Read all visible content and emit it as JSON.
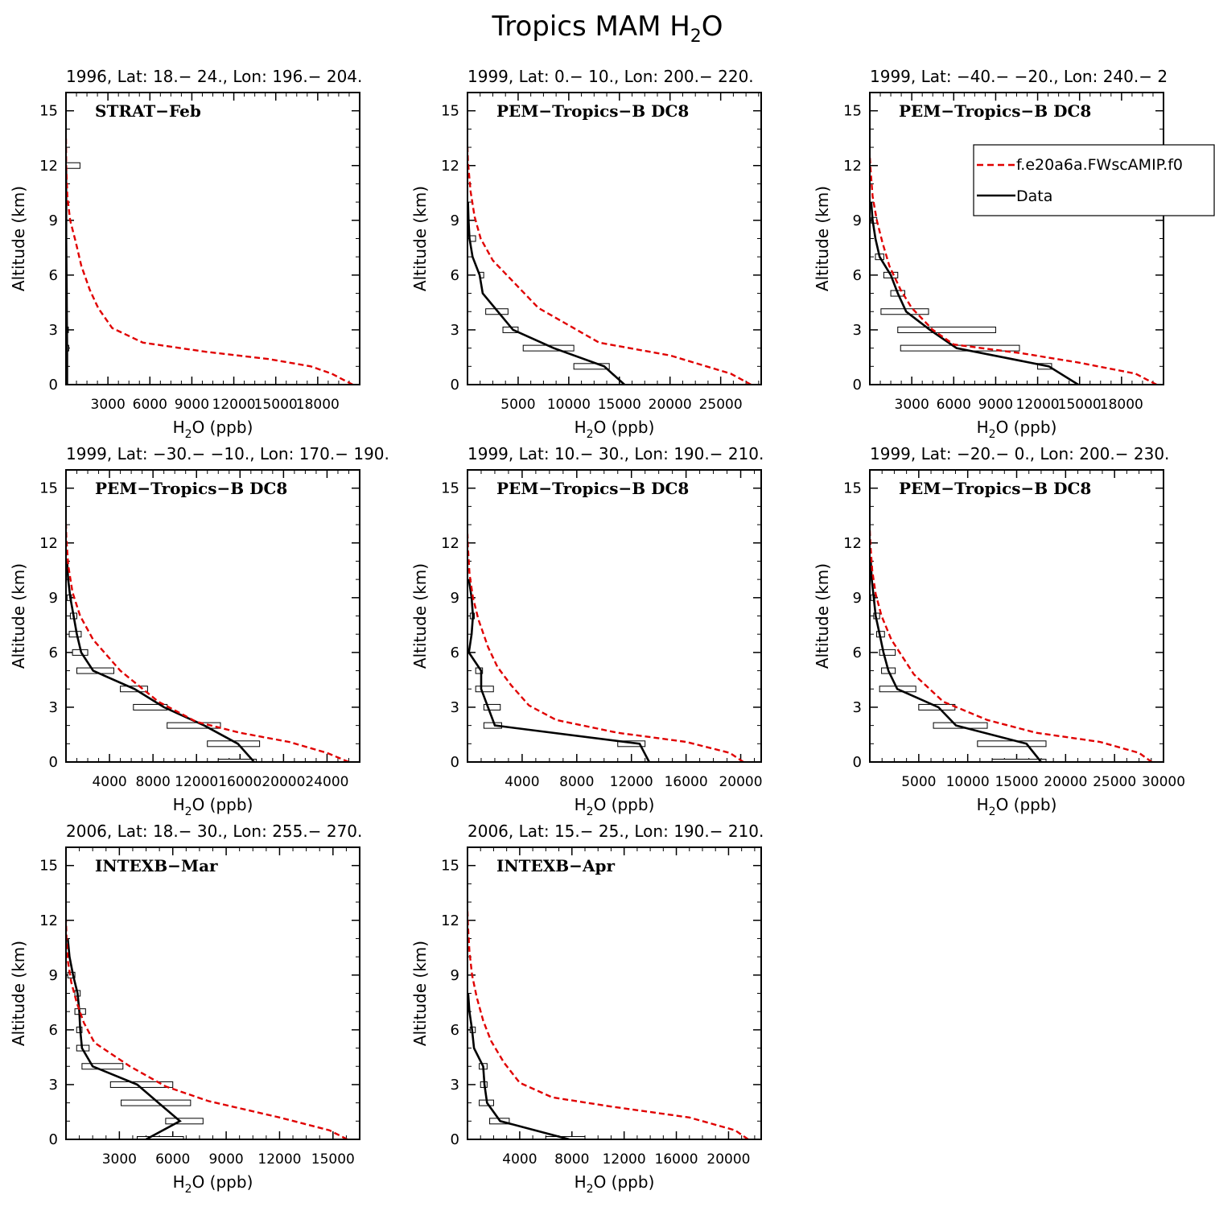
{
  "figure_title": "Tropics MAM H",
  "figure_title_sub": "2",
  "figure_title_suffix": "O",
  "legend": {
    "model_label": "f.e20a6a.FWscAMIP.f0",
    "data_label": "Data",
    "model_color": "#e00000",
    "data_color": "#000000"
  },
  "chart_data": [
    {
      "type": "line",
      "subtitle": "1996, Lat: 18.− 24., Lon: 196.− 204.",
      "campaign": "STRAT−Feb",
      "ylabel": "Altitude (km)",
      "xlabel": "H2O (ppb)",
      "xlim": [
        0,
        21000
      ],
      "ylim": [
        0,
        16
      ],
      "xticks": [
        3000,
        6000,
        9000,
        12000,
        15000,
        18000
      ],
      "xtick_labels": [
        "3000",
        "6000",
        "9000",
        "12000",
        "15000",
        "18000"
      ],
      "yticks": [
        0,
        3,
        6,
        9,
        12,
        15
      ],
      "model": [
        [
          20500,
          0
        ],
        [
          19000,
          0.6
        ],
        [
          17500,
          1.0
        ],
        [
          14500,
          1.4
        ],
        [
          10000,
          1.8
        ],
        [
          5500,
          2.3
        ],
        [
          3300,
          3.1
        ],
        [
          2300,
          4.2
        ],
        [
          1700,
          5.2
        ],
        [
          1100,
          6.5
        ],
        [
          700,
          7.8
        ],
        [
          300,
          9.0
        ],
        [
          100,
          10.3
        ],
        [
          20,
          12.0
        ],
        [
          0,
          13.5
        ]
      ],
      "data": [
        [
          80,
          0
        ],
        [
          80,
          1
        ],
        [
          80,
          2
        ],
        [
          70,
          3
        ],
        [
          60,
          4
        ],
        [
          50,
          5
        ],
        [
          40,
          6
        ],
        [
          30,
          7
        ],
        [
          20,
          8
        ],
        [
          20,
          9
        ],
        [
          20,
          10
        ],
        [
          10,
          11
        ],
        [
          10,
          12
        ]
      ],
      "bars": [
        [
          0,
          200,
          2
        ],
        [
          0,
          150,
          3
        ],
        [
          0,
          1000,
          12
        ]
      ]
    },
    {
      "type": "line",
      "subtitle": "1999, Lat: 0.− 10., Lon: 200.− 220.",
      "campaign": "PEM−Tropics−B DC8",
      "ylabel": "Altitude (km)",
      "xlabel": "H2O (ppb)",
      "xlim": [
        0,
        29000
      ],
      "ylim": [
        0,
        16
      ],
      "xticks": [
        5000,
        10000,
        15000,
        20000,
        25000
      ],
      "xtick_labels": [
        "5000",
        "10000",
        "15000",
        "20000",
        "25000"
      ],
      "yticks": [
        0,
        3,
        6,
        9,
        12,
        15
      ],
      "model": [
        [
          28000,
          0
        ],
        [
          26000,
          0.6
        ],
        [
          20000,
          1.6
        ],
        [
          13000,
          2.3
        ],
        [
          7000,
          4.2
        ],
        [
          2500,
          6.8
        ],
        [
          1300,
          8.0
        ],
        [
          700,
          9.2
        ],
        [
          300,
          10.6
        ],
        [
          50,
          12.2
        ],
        [
          0,
          13.0
        ]
      ],
      "data": [
        [
          15500,
          0
        ],
        [
          13500,
          1
        ],
        [
          8500,
          2
        ],
        [
          4500,
          3
        ],
        [
          3000,
          4
        ],
        [
          1500,
          5
        ],
        [
          1200,
          6
        ],
        [
          500,
          7
        ],
        [
          200,
          8
        ],
        [
          100,
          9
        ],
        [
          50,
          10
        ]
      ],
      "bars": [
        [
          10500,
          14000,
          1
        ],
        [
          5500,
          10500,
          2
        ],
        [
          3500,
          5000,
          3
        ],
        [
          1800,
          4000,
          4
        ],
        [
          1200,
          1600,
          6
        ],
        [
          200,
          800,
          8
        ]
      ]
    },
    {
      "type": "line",
      "subtitle": "1999, Lat: −40.− −20., Lon: 240.− 2",
      "campaign": "PEM−Tropics−B DC8",
      "ylabel": "Altitude (km)",
      "xlabel": "H2O (ppb)",
      "xlim": [
        0,
        21000
      ],
      "ylim": [
        0,
        16
      ],
      "xticks": [
        3000,
        6000,
        9000,
        12000,
        15000,
        18000
      ],
      "xtick_labels": [
        "3000",
        "6000",
        "9000",
        "12000",
        "15000",
        "18000"
      ],
      "yticks": [
        0,
        3,
        6,
        9,
        12,
        15
      ],
      "model": [
        [
          20500,
          0
        ],
        [
          19000,
          0.6
        ],
        [
          15000,
          1.2
        ],
        [
          11000,
          1.7
        ],
        [
          6000,
          2.2
        ],
        [
          4500,
          3.0
        ],
        [
          3000,
          4.2
        ],
        [
          2200,
          5.2
        ],
        [
          1400,
          6.5
        ],
        [
          900,
          7.8
        ],
        [
          500,
          9.0
        ],
        [
          200,
          10.3
        ],
        [
          50,
          11.8
        ],
        [
          0,
          12.5
        ]
      ],
      "data": [
        [
          14900,
          0
        ],
        [
          12800,
          1
        ],
        [
          6200,
          2
        ],
        [
          4300,
          3
        ],
        [
          2600,
          4
        ],
        [
          2000,
          5
        ],
        [
          1500,
          6
        ],
        [
          700,
          7
        ],
        [
          400,
          8
        ],
        [
          200,
          9
        ],
        [
          100,
          10
        ]
      ],
      "bars": [
        [
          12000,
          13000,
          1
        ],
        [
          2200,
          10700,
          2
        ],
        [
          2000,
          9000,
          3
        ],
        [
          800,
          4200,
          4
        ],
        [
          1500,
          2500,
          5
        ],
        [
          1000,
          2000,
          6
        ],
        [
          400,
          1000,
          7
        ],
        [
          100,
          500,
          9
        ]
      ]
    },
    {
      "type": "line",
      "subtitle": "1999, Lat: −30.− −10., Lon: 170.− 190.",
      "campaign": "PEM−Tropics−B DC8",
      "ylabel": "Altitude (km)",
      "xlabel": "H2O (ppb)",
      "xlim": [
        0,
        27000
      ],
      "ylim": [
        0,
        16
      ],
      "xticks": [
        4000,
        8000,
        12000,
        16000,
        20000,
        24000
      ],
      "xtick_labels": [
        "4000",
        "8000",
        "12000",
        "16000",
        "20000",
        "24000"
      ],
      "yticks": [
        0,
        3,
        6,
        9,
        12,
        15
      ],
      "model": [
        [
          26000,
          0
        ],
        [
          24000,
          0.5
        ],
        [
          20500,
          1.1
        ],
        [
          16000,
          1.6
        ],
        [
          12000,
          2.2
        ],
        [
          8500,
          3.3
        ],
        [
          5000,
          5.0
        ],
        [
          2500,
          6.7
        ],
        [
          1300,
          8.0
        ],
        [
          600,
          9.3
        ],
        [
          200,
          10.8
        ],
        [
          30,
          12.3
        ],
        [
          0,
          13.0
        ]
      ],
      "data": [
        [
          17300,
          0
        ],
        [
          15800,
          1
        ],
        [
          12700,
          2
        ],
        [
          9000,
          3
        ],
        [
          6300,
          4
        ],
        [
          2500,
          5
        ],
        [
          1400,
          6
        ],
        [
          1000,
          7
        ],
        [
          700,
          8
        ],
        [
          400,
          9
        ],
        [
          200,
          10
        ],
        [
          100,
          11
        ]
      ],
      "bars": [
        [
          14000,
          17500,
          0
        ],
        [
          13000,
          17800,
          1
        ],
        [
          9300,
          14200,
          2
        ],
        [
          6200,
          9300,
          3
        ],
        [
          5000,
          7500,
          4
        ],
        [
          1000,
          4400,
          5
        ],
        [
          600,
          2000,
          6
        ],
        [
          300,
          1400,
          7
        ],
        [
          400,
          1000,
          8
        ],
        [
          100,
          500,
          9
        ]
      ]
    },
    {
      "type": "line",
      "subtitle": "1999, Lat: 10.− 30., Lon: 190.− 210.",
      "campaign": "PEM−Tropics−B DC8",
      "ylabel": "Altitude (km)",
      "xlabel": "H2O (ppb)",
      "xlim": [
        0,
        21500
      ],
      "ylim": [
        0,
        16
      ],
      "xticks": [
        4000,
        8000,
        12000,
        16000,
        20000
      ],
      "xtick_labels": [
        "4000",
        "8000",
        "12000",
        "16000",
        "20000"
      ],
      "yticks": [
        0,
        3,
        6,
        9,
        12,
        15
      ],
      "model": [
        [
          20200,
          0
        ],
        [
          19200,
          0.5
        ],
        [
          16000,
          1.1
        ],
        [
          11000,
          1.6
        ],
        [
          6500,
          2.3
        ],
        [
          4500,
          3.1
        ],
        [
          3200,
          4.2
        ],
        [
          2200,
          5.2
        ],
        [
          1500,
          6.3
        ],
        [
          800,
          7.8
        ],
        [
          400,
          9.0
        ],
        [
          150,
          10.3
        ],
        [
          30,
          11.8
        ],
        [
          0,
          12.5
        ]
      ],
      "data": [
        [
          13300,
          0
        ],
        [
          12600,
          1
        ],
        [
          2000,
          2
        ],
        [
          1500,
          3
        ],
        [
          1000,
          4
        ],
        [
          1000,
          5
        ],
        [
          100,
          6
        ],
        [
          300,
          7
        ],
        [
          400,
          8
        ],
        [
          300,
          9
        ],
        [
          100,
          10
        ]
      ],
      "bars": [
        [
          11000,
          13000,
          1
        ],
        [
          1200,
          2500,
          2
        ],
        [
          1200,
          2400,
          3
        ],
        [
          600,
          1900,
          4
        ],
        [
          600,
          1100,
          5
        ],
        [
          200,
          500,
          8
        ]
      ]
    },
    {
      "type": "line",
      "subtitle": "1999, Lat: −20.− 0., Lon: 200.− 230.",
      "campaign": "PEM−Tropics−B DC8",
      "ylabel": "Altitude (km)",
      "xlabel": "H2O (ppb)",
      "xlim": [
        0,
        30000
      ],
      "ylim": [
        0,
        16
      ],
      "xticks": [
        5000,
        10000,
        15000,
        20000,
        25000,
        30000
      ],
      "xtick_labels": [
        "5000",
        "10000",
        "15000",
        "20000",
        "25000",
        "30000"
      ],
      "yticks": [
        0,
        3,
        6,
        9,
        12,
        15
      ],
      "model": [
        [
          28800,
          0
        ],
        [
          27500,
          0.5
        ],
        [
          23500,
          1.1
        ],
        [
          17000,
          1.6
        ],
        [
          12000,
          2.3
        ],
        [
          7500,
          3.3
        ],
        [
          4500,
          4.8
        ],
        [
          2200,
          6.7
        ],
        [
          1200,
          8.0
        ],
        [
          600,
          9.2
        ],
        [
          250,
          10.5
        ],
        [
          50,
          12.0
        ],
        [
          0,
          12.7
        ]
      ],
      "data": [
        [
          17500,
          0
        ],
        [
          16000,
          1
        ],
        [
          8800,
          2
        ],
        [
          7000,
          3
        ],
        [
          2800,
          4
        ],
        [
          1900,
          5
        ],
        [
          1400,
          6
        ],
        [
          1000,
          7
        ],
        [
          600,
          8
        ],
        [
          400,
          9
        ],
        [
          200,
          10
        ],
        [
          100,
          11
        ]
      ],
      "bars": [
        [
          12500,
          18000,
          0
        ],
        [
          11000,
          18000,
          1
        ],
        [
          6500,
          12000,
          2
        ],
        [
          5000,
          8700,
          3
        ],
        [
          1000,
          4700,
          4
        ],
        [
          1200,
          2600,
          5
        ],
        [
          1000,
          2600,
          6
        ],
        [
          700,
          1500,
          7
        ],
        [
          400,
          1000,
          8
        ],
        [
          100,
          500,
          9
        ]
      ]
    },
    {
      "type": "line",
      "subtitle": "2006, Lat: 18.− 30., Lon: 255.− 270.",
      "campaign": "INTEXB−Mar",
      "ylabel": "Altitude (km)",
      "xlabel": "H2O (ppb)",
      "xlim": [
        0,
        16500
      ],
      "ylim": [
        0,
        16
      ],
      "xticks": [
        3000,
        6000,
        9000,
        12000,
        15000
      ],
      "xtick_labels": [
        "3000",
        "6000",
        "9000",
        "12000",
        "15000"
      ],
      "yticks": [
        0,
        3,
        6,
        9,
        12,
        15
      ],
      "model": [
        [
          15800,
          0
        ],
        [
          14800,
          0.5
        ],
        [
          12000,
          1.2
        ],
        [
          8000,
          2.1
        ],
        [
          5600,
          2.9
        ],
        [
          3600,
          4.0
        ],
        [
          1600,
          5.3
        ],
        [
          1000,
          6.4
        ],
        [
          600,
          7.5
        ],
        [
          300,
          8.6
        ],
        [
          100,
          9.8
        ],
        [
          30,
          11.0
        ],
        [
          0,
          12.0
        ]
      ],
      "data": [
        [
          4500,
          0
        ],
        [
          6400,
          1
        ],
        [
          5200,
          2
        ],
        [
          4000,
          3
        ],
        [
          1500,
          4
        ],
        [
          900,
          5
        ],
        [
          800,
          6
        ],
        [
          750,
          7
        ],
        [
          650,
          8
        ],
        [
          400,
          9
        ],
        [
          200,
          10
        ],
        [
          100,
          11
        ]
      ],
      "bars": [
        [
          4000,
          6600,
          0
        ],
        [
          5600,
          7700,
          1
        ],
        [
          3100,
          7000,
          2
        ],
        [
          2500,
          6000,
          3
        ],
        [
          900,
          3200,
          4
        ],
        [
          600,
          1300,
          5
        ],
        [
          600,
          900,
          6
        ],
        [
          500,
          1100,
          7
        ],
        [
          500,
          800,
          8
        ],
        [
          100,
          500,
          9
        ]
      ]
    },
    {
      "type": "line",
      "subtitle": "2006, Lat: 15.− 25., Lon: 190.− 210.",
      "campaign": "INTEXB−Apr",
      "ylabel": "Altitude (km)",
      "xlabel": "H2O (ppb)",
      "xlim": [
        0,
        22500
      ],
      "ylim": [
        0,
        16
      ],
      "xticks": [
        4000,
        8000,
        12000,
        16000,
        20000
      ],
      "xtick_labels": [
        "4000",
        "8000",
        "12000",
        "16000",
        "20000"
      ],
      "yticks": [
        0,
        3,
        6,
        9,
        12,
        15
      ],
      "model": [
        [
          21500,
          0
        ],
        [
          20500,
          0.5
        ],
        [
          17000,
          1.2
        ],
        [
          11000,
          1.8
        ],
        [
          6500,
          2.3
        ],
        [
          4000,
          3.1
        ],
        [
          2800,
          4.2
        ],
        [
          1800,
          5.4
        ],
        [
          1200,
          6.5
        ],
        [
          700,
          7.8
        ],
        [
          350,
          9.0
        ],
        [
          150,
          10.3
        ],
        [
          30,
          11.8
        ],
        [
          0,
          12.5
        ]
      ],
      "data": [
        [
          7800,
          0
        ],
        [
          2500,
          1
        ],
        [
          1500,
          2
        ],
        [
          1300,
          3
        ],
        [
          1200,
          4
        ],
        [
          500,
          5
        ],
        [
          350,
          6
        ],
        [
          150,
          7
        ],
        [
          50,
          8
        ]
      ],
      "bars": [
        [
          6000,
          9000,
          0
        ],
        [
          1700,
          3200,
          1
        ],
        [
          900,
          2000,
          2
        ],
        [
          1000,
          1500,
          3
        ],
        [
          900,
          1500,
          4
        ],
        [
          200,
          600,
          6
        ]
      ]
    }
  ]
}
